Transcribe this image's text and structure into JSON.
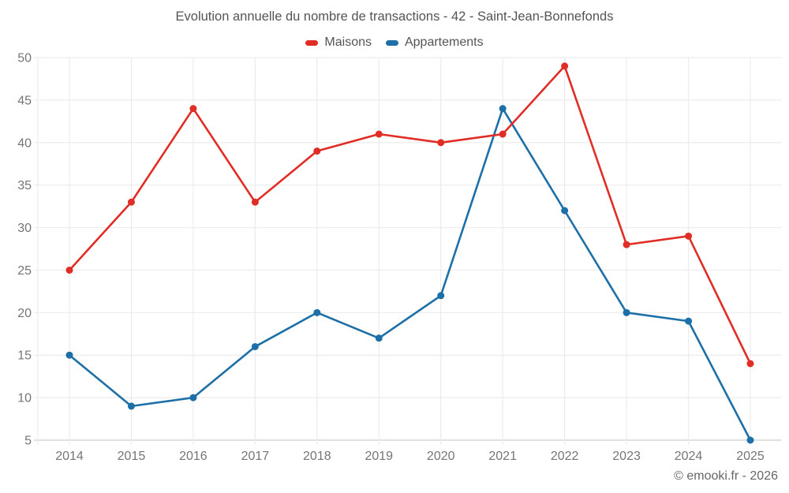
{
  "chart": {
    "title": "Evolution annuelle du nombre de transactions - 42 - Saint-Jean-Bonnefonds",
    "watermark": "© emooki.fr - 2026"
  },
  "chart_data": {
    "type": "line",
    "x": [
      "2014",
      "2015",
      "2016",
      "2017",
      "2018",
      "2019",
      "2020",
      "2021",
      "2022",
      "2023",
      "2024",
      "2025"
    ],
    "series": [
      {
        "name": "Maisons",
        "color": "#e02d26",
        "values": [
          25,
          33,
          44,
          33,
          39,
          41,
          40,
          41,
          49,
          28,
          29,
          14
        ]
      },
      {
        "name": "Appartements",
        "color": "#1d6fa8",
        "values": [
          15,
          9,
          10,
          16,
          20,
          17,
          22,
          44,
          32,
          20,
          19,
          5
        ]
      }
    ],
    "ylim": [
      5,
      50
    ],
    "ytick_step": 5,
    "grid": true,
    "legend_position": "top",
    "colors": {
      "gridline": "#ececec",
      "axis_line": "#d5d5d5",
      "tick_text": "#757575"
    }
  }
}
